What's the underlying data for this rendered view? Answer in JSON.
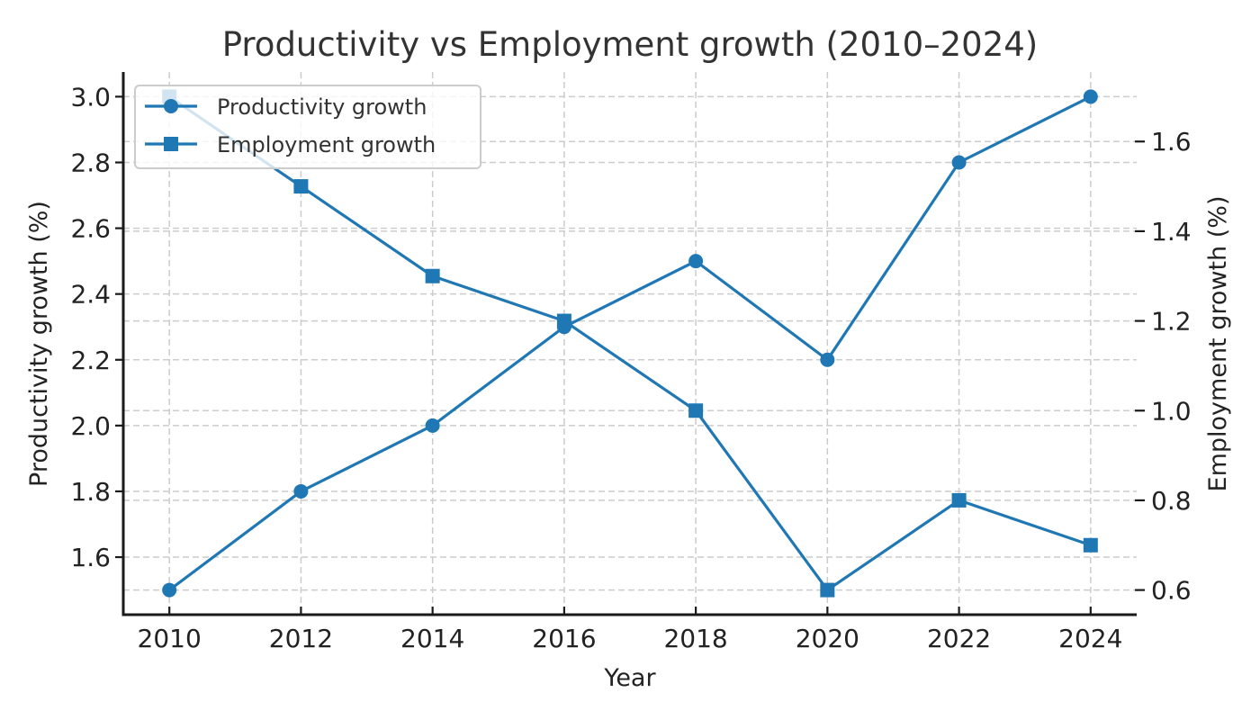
{
  "chart_data": {
    "type": "line",
    "title": "Productivity vs Employment growth (2010–2024)",
    "xlabel": "Year",
    "ylabel_left": "Productivity growth (%)",
    "ylabel_right": "Employment growth (%)",
    "x": [
      2010,
      2012,
      2014,
      2016,
      2018,
      2020,
      2022,
      2024
    ],
    "x_ticks": [
      "2010",
      "2012",
      "2014",
      "2016",
      "2018",
      "2020",
      "2022",
      "2024"
    ],
    "xlim": [
      2009.3,
      2024.7
    ],
    "ylim_left": [
      1.425,
      3.075
    ],
    "ylim_right": [
      0.545,
      1.755
    ],
    "y_ticks_left": [
      "1.6",
      "1.8",
      "2.0",
      "2.2",
      "2.4",
      "2.6",
      "2.8",
      "3.0"
    ],
    "y_ticks_right": [
      "0.6",
      "0.8",
      "1.0",
      "1.2",
      "1.4",
      "1.6"
    ],
    "grid": true,
    "legend_position": "top-left",
    "series": [
      {
        "name": "Productivity growth",
        "axis": "left",
        "marker": "circle",
        "color": "#1f77b4",
        "values": [
          1.5,
          1.8,
          2.0,
          2.3,
          2.5,
          2.2,
          2.8,
          3.0
        ]
      },
      {
        "name": "Employment growth",
        "axis": "right",
        "marker": "square",
        "color": "#1f77b4",
        "values": [
          1.7,
          1.5,
          1.3,
          1.2,
          1.0,
          0.6,
          0.8,
          0.7
        ]
      }
    ]
  }
}
